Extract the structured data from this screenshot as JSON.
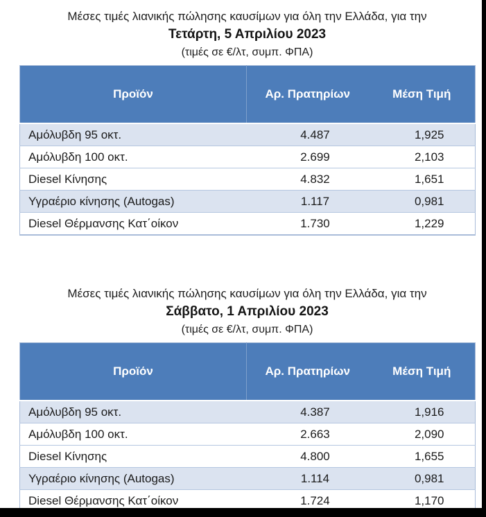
{
  "colors": {
    "header_bg": "#4d7dba",
    "header_text": "#ffffff",
    "header_divider": "#7e9fcc",
    "row_shaded_bg": "#dbe3f0",
    "row_border": "#b4c6e0",
    "table_outer_border": "#a9bcd9",
    "frame_color": "#000000"
  },
  "sections": [
    {
      "title": "Μέσες τιμές λιανικής πώλησης καυσίμων για όλη την Ελλάδα, για την",
      "date": "Τετάρτη, 5 Απριλίου 2023",
      "unit_note": "(τιμές σε €/λτ, συμπ. ΦΠΑ)",
      "table": {
        "columns": [
          "Προϊόν",
          "Αρ. Πρατηρίων",
          "Μέση Τιμή"
        ],
        "rows": [
          {
            "product": "Αμόλυβδη 95 οκτ.",
            "stations": "4.487",
            "price": "1,925"
          },
          {
            "product": "Αμόλυβδη 100 οκτ.",
            "stations": "2.699",
            "price": "2,103"
          },
          {
            "product": "Diesel Κίνησης",
            "stations": "4.832",
            "price": "1,651"
          },
          {
            "product": "Υγραέριο κίνησης (Autogas)",
            "stations": "1.117",
            "price": "0,981"
          },
          {
            "product": "Diesel Θέρμανσης Κατ΄οίκον",
            "stations": "1.730",
            "price": "1,229"
          }
        ]
      }
    },
    {
      "title": "Μέσες τιμές λιανικής πώλησης καυσίμων για όλη την Ελλάδα, για την",
      "date": "Σάββατο, 1 Απριλίου 2023",
      "unit_note": "(τιμές σε €/λτ, συμπ. ΦΠΑ)",
      "table": {
        "columns": [
          "Προϊόν",
          "Αρ. Πρατηρίων",
          "Μέση Τιμή"
        ],
        "rows": [
          {
            "product": "Αμόλυβδη 95 οκτ.",
            "stations": "4.387",
            "price": "1,916"
          },
          {
            "product": "Αμόλυβδη 100 οκτ.",
            "stations": "2.663",
            "price": "2,090"
          },
          {
            "product": "Diesel Κίνησης",
            "stations": "4.800",
            "price": "1,655"
          },
          {
            "product": "Υγραέριο κίνησης (Autogas)",
            "stations": "1.114",
            "price": "0,981"
          },
          {
            "product": "Diesel Θέρμανσης Κατ΄οίκον",
            "stations": "1.724",
            "price": "1,170"
          }
        ]
      }
    }
  ]
}
